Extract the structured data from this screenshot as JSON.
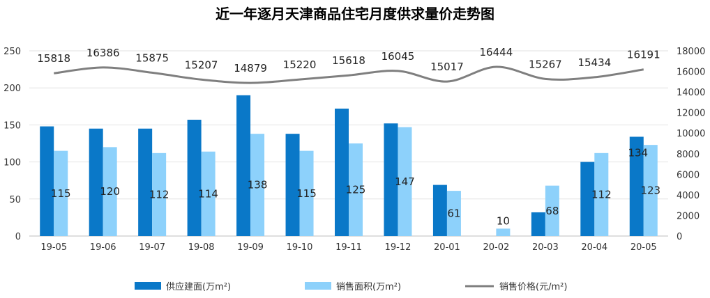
{
  "chart_data": {
    "type": "bar",
    "title": "近一年逐月天津商品住宅月度供求量价走势图",
    "categories": [
      "19-05",
      "19-06",
      "19-07",
      "19-08",
      "19-09",
      "19-10",
      "19-11",
      "19-12",
      "20-01",
      "20-02",
      "20-03",
      "20-04",
      "20-05"
    ],
    "series": [
      {
        "name": "供应建面(万m²)",
        "type": "bar",
        "axis": "left",
        "color": "#0a78c8",
        "values": [
          148,
          145,
          145,
          157,
          190,
          138,
          172,
          152,
          69,
          0,
          32,
          100,
          134
        ],
        "labels": [
          "",
          "",
          "",
          "",
          "",
          "",
          "",
          "",
          "",
          "",
          "",
          "",
          "134"
        ]
      },
      {
        "name": "销售面积(万m²)",
        "type": "bar",
        "axis": "left",
        "color": "#8dd1fb",
        "values": [
          115,
          120,
          112,
          114,
          138,
          115,
          125,
          147,
          61,
          10,
          68,
          112,
          123
        ],
        "labels": [
          "115",
          "120",
          "112",
          "114",
          "138",
          "115",
          "125",
          "147",
          "61",
          "10",
          "68",
          "112",
          "123"
        ]
      },
      {
        "name": "销售价格(元/m²)",
        "type": "line",
        "axis": "right",
        "color": "#7f7f7f",
        "values": [
          15818,
          16386,
          15875,
          15207,
          14879,
          15220,
          15618,
          16045,
          15017,
          16444,
          15267,
          15434,
          16191
        ],
        "labels": [
          "15818",
          "16386",
          "15875",
          "15207",
          "14879",
          "15220",
          "15618",
          "16045",
          "15017",
          "16444",
          "15267",
          "15434",
          "16191"
        ]
      }
    ],
    "y_left": {
      "min": 0,
      "max": 250,
      "ticks": [
        "0",
        "50",
        "100",
        "150",
        "200",
        "250"
      ]
    },
    "y_right": {
      "min": 0,
      "max": 18000,
      "ticks": [
        "0",
        "2000",
        "4000",
        "6000",
        "8000",
        "10000",
        "12000",
        "14000",
        "16000",
        "18000"
      ]
    },
    "grid": true,
    "legend_position": "bottom"
  }
}
